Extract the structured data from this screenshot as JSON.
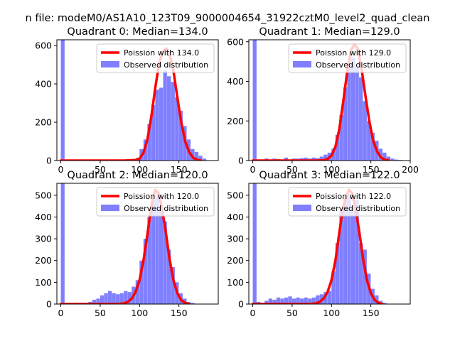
{
  "figure_title": "n file: modeM0/AS1A10_123T09_9000004654_31922cztM0_level2_quad_clean",
  "colors": {
    "poisson": "#ff0000",
    "observed": "#0000ff",
    "axis": "#000000"
  },
  "chart_data": [
    {
      "type": "bar",
      "title": "Quadrant 0: Median=134.0",
      "median": 134.0,
      "legend": {
        "placement": "top-right",
        "entries": [
          "Poission with 134.0",
          "Observed distribution"
        ]
      },
      "xlim": [
        -5,
        200
      ],
      "ylim": [
        0,
        630
      ],
      "xticks": [
        0,
        50,
        100,
        150
      ],
      "yticks": [
        0,
        200,
        400,
        600
      ],
      "bin_width": 4.8,
      "hist_x": [
        0,
        96,
        100,
        105,
        110,
        115,
        120,
        125,
        130,
        135,
        140,
        145,
        150,
        155,
        160,
        165,
        170,
        175,
        180
      ],
      "hist_values": [
        630,
        15,
        60,
        110,
        190,
        290,
        370,
        380,
        470,
        440,
        410,
        330,
        260,
        180,
        110,
        60,
        45,
        25,
        10
      ],
      "poisson_x": [
        0,
        80,
        95,
        100,
        105,
        110,
        115,
        120,
        125,
        130,
        134,
        138,
        143,
        148,
        153,
        158,
        163,
        168,
        173,
        178
      ],
      "poisson_values": [
        0,
        0,
        3,
        10,
        40,
        110,
        230,
        380,
        510,
        570,
        585,
        560,
        470,
        330,
        200,
        100,
        45,
        15,
        4,
        0
      ]
    },
    {
      "type": "bar",
      "title": "Quadrant 1: Median=129.0",
      "median": 129.0,
      "legend": {
        "placement": "top-right",
        "entries": [
          "Poission with 129.0",
          "Observed distribution"
        ]
      },
      "xlim": [
        -5,
        200
      ],
      "ylim": [
        0,
        610
      ],
      "xticks": [
        0,
        50,
        100,
        150,
        200
      ],
      "yticks": [
        0,
        200,
        400,
        600
      ],
      "bin_width": 4.8,
      "hist_x": [
        0,
        10,
        15,
        25,
        30,
        40,
        50,
        55,
        60,
        65,
        70,
        75,
        80,
        85,
        90,
        95,
        100,
        105,
        110,
        115,
        120,
        125,
        130,
        135,
        140,
        145,
        150,
        155,
        160,
        165,
        170,
        175,
        180,
        185
      ],
      "hist_values": [
        610,
        5,
        10,
        10,
        8,
        15,
        10,
        10,
        12,
        15,
        10,
        15,
        12,
        20,
        30,
        40,
        60,
        130,
        230,
        370,
        490,
        520,
        470,
        420,
        300,
        200,
        140,
        100,
        60,
        40,
        20,
        10,
        5,
        3
      ],
      "poisson_x": [
        0,
        80,
        90,
        95,
        100,
        105,
        110,
        115,
        120,
        125,
        129,
        133,
        138,
        143,
        148,
        153,
        158,
        163,
        168,
        173
      ],
      "poisson_values": [
        0,
        0,
        2,
        8,
        25,
        70,
        160,
        300,
        450,
        560,
        585,
        570,
        470,
        330,
        200,
        100,
        45,
        15,
        4,
        0
      ]
    },
    {
      "type": "bar",
      "title": "Quadrant 2: Median=120.0",
      "median": 120.0,
      "legend": {
        "placement": "top-right",
        "entries": [
          "Poission with 120.0",
          "Observed distribution"
        ]
      },
      "xlim": [
        -5,
        200
      ],
      "ylim": [
        0,
        555
      ],
      "xticks": [
        0,
        50,
        100,
        150
      ],
      "yticks": [
        0,
        100,
        200,
        300,
        400,
        500
      ],
      "bin_width": 4.8,
      "hist_x": [
        0,
        30,
        35,
        40,
        45,
        50,
        55,
        60,
        65,
        70,
        75,
        80,
        85,
        90,
        95,
        100,
        105,
        110,
        115,
        120,
        125,
        130,
        135,
        140,
        145,
        150,
        155,
        160,
        165
      ],
      "hist_values": [
        555,
        5,
        10,
        20,
        25,
        40,
        50,
        60,
        50,
        45,
        50,
        60,
        55,
        80,
        110,
        200,
        300,
        400,
        480,
        500,
        440,
        380,
        250,
        170,
        100,
        50,
        25,
        10,
        5
      ],
      "poisson_x": [
        0,
        70,
        80,
        85,
        90,
        95,
        100,
        105,
        110,
        115,
        120,
        124,
        128,
        133,
        138,
        143,
        148,
        153,
        158,
        163
      ],
      "poisson_values": [
        0,
        0,
        3,
        10,
        25,
        55,
        110,
        200,
        320,
        450,
        525,
        510,
        450,
        340,
        210,
        110,
        50,
        18,
        5,
        0
      ]
    },
    {
      "type": "bar",
      "title": "Quadrant 3: Median=122.0",
      "median": 122.0,
      "legend": {
        "placement": "top-right",
        "entries": [
          "Poission with 122.0",
          "Observed distribution"
        ]
      },
      "xlim": [
        -5,
        200
      ],
      "ylim": [
        0,
        555
      ],
      "xticks": [
        0,
        50,
        100,
        150
      ],
      "yticks": [
        0,
        100,
        200,
        300,
        400,
        500
      ],
      "bin_width": 4.8,
      "hist_x": [
        0,
        5,
        15,
        20,
        25,
        30,
        35,
        40,
        45,
        50,
        55,
        60,
        65,
        70,
        75,
        80,
        85,
        90,
        95,
        100,
        105,
        110,
        115,
        120,
        125,
        130,
        135,
        140,
        145,
        150,
        155,
        160,
        165
      ],
      "hist_values": [
        555,
        10,
        15,
        25,
        20,
        30,
        25,
        30,
        35,
        25,
        30,
        25,
        30,
        25,
        30,
        40,
        45,
        55,
        60,
        150,
        280,
        430,
        490,
        500,
        450,
        480,
        280,
        250,
        140,
        70,
        40,
        15,
        5
      ],
      "poisson_x": [
        0,
        70,
        80,
        85,
        90,
        95,
        100,
        105,
        110,
        115,
        122,
        126,
        130,
        135,
        140,
        145,
        150,
        155,
        160,
        165
      ],
      "poisson_values": [
        0,
        0,
        3,
        10,
        25,
        55,
        110,
        200,
        330,
        450,
        525,
        510,
        450,
        340,
        210,
        110,
        50,
        18,
        5,
        0
      ]
    }
  ]
}
